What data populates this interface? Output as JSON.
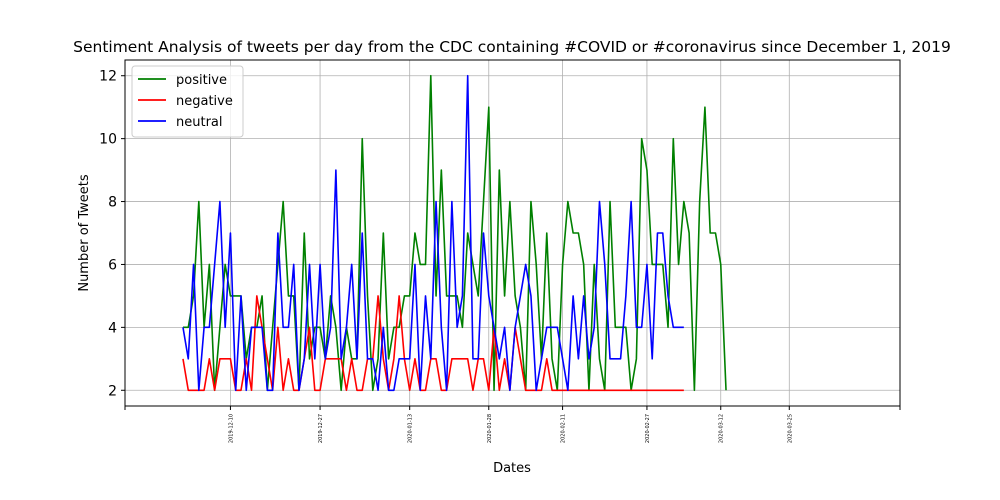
{
  "chart_data": {
    "type": "line",
    "title": "Sentiment Analysis of tweets per day from the CDC containing #COVID or #coronavirus since December 1, 2019",
    "xlabel": "Dates",
    "ylabel": "Number of Tweets",
    "ylim": [
      1.5,
      12.5
    ],
    "yticks": [
      2,
      4,
      6,
      8,
      10,
      12
    ],
    "xlim": [
      "2019-11-20",
      "2020-04-15"
    ],
    "xticks": [
      "2019-12-10",
      "2019-12-27",
      "2020-01-13",
      "2020-01-28",
      "2020-02-11",
      "2020-02-27",
      "2020-03-12",
      "2020-03-25"
    ],
    "grid": true,
    "legend": "upper-left",
    "series": [
      {
        "name": "positive",
        "color": "#008000",
        "start": "2019-12-01",
        "values": [
          4,
          4,
          5,
          8,
          4,
          6,
          2,
          4,
          6,
          5,
          5,
          5,
          3,
          4,
          4,
          5,
          2,
          4,
          6,
          8,
          5,
          5,
          2,
          7,
          3,
          4,
          4,
          3,
          5,
          4,
          2,
          4,
          3,
          3,
          10,
          5,
          2,
          3,
          7,
          3,
          4,
          4,
          5,
          5,
          7,
          6,
          6,
          12,
          5,
          9,
          5,
          5,
          5,
          4,
          7,
          6,
          5,
          8,
          11,
          2,
          9,
          5,
          8,
          5,
          4,
          2,
          8,
          6,
          3,
          7,
          3,
          2,
          6,
          8,
          7,
          7,
          6,
          2,
          6,
          3,
          2,
          8,
          4,
          4,
          4,
          2,
          3,
          10,
          9,
          6,
          6,
          6,
          4,
          10,
          6,
          8,
          7,
          2,
          8,
          11,
          7,
          7,
          6,
          2
        ]
      },
      {
        "name": "negative",
        "color": "#ff0000",
        "start": "2019-12-01",
        "values": [
          3,
          2,
          2,
          2,
          2,
          3,
          2,
          3,
          3,
          3,
          2,
          2,
          3,
          2,
          5,
          4,
          3,
          2,
          4,
          2,
          3,
          2,
          2,
          3,
          4,
          2,
          2,
          3,
          3,
          3,
          3,
          2,
          3,
          2,
          2,
          3,
          3,
          5,
          3,
          2,
          3,
          5,
          3,
          2,
          3,
          2,
          2,
          3,
          3,
          2,
          2,
          3,
          3,
          3,
          3,
          2,
          3,
          3,
          2,
          4,
          2,
          3,
          2,
          4,
          3,
          2,
          2,
          2,
          2,
          3,
          2,
          2,
          2,
          2,
          2,
          2,
          2,
          2,
          2,
          2,
          2,
          2,
          2,
          2,
          2,
          2,
          2,
          2,
          2,
          2,
          2,
          2,
          2,
          2,
          2,
          2
        ]
      },
      {
        "name": "neutral",
        "color": "#0000ff",
        "start": "2019-12-01",
        "values": [
          4,
          3,
          6,
          2,
          4,
          4,
          6,
          8,
          4,
          7,
          2,
          5,
          2,
          4,
          4,
          4,
          2,
          2,
          7,
          4,
          4,
          6,
          2,
          3,
          6,
          3,
          6,
          3,
          4,
          9,
          3,
          4,
          6,
          3,
          7,
          3,
          3,
          2,
          4,
          2,
          2,
          3,
          3,
          3,
          6,
          2,
          5,
          3,
          8,
          4,
          2,
          8,
          4,
          5,
          12,
          3,
          3,
          7,
          5,
          4,
          3,
          4,
          2,
          4,
          5,
          6,
          5,
          2,
          3,
          4,
          4,
          4,
          3,
          2,
          5,
          3,
          5,
          3,
          4,
          8,
          6,
          3,
          3,
          3,
          5,
          8,
          4,
          4,
          6,
          3,
          7,
          7,
          5,
          4,
          4,
          4
        ]
      }
    ]
  }
}
